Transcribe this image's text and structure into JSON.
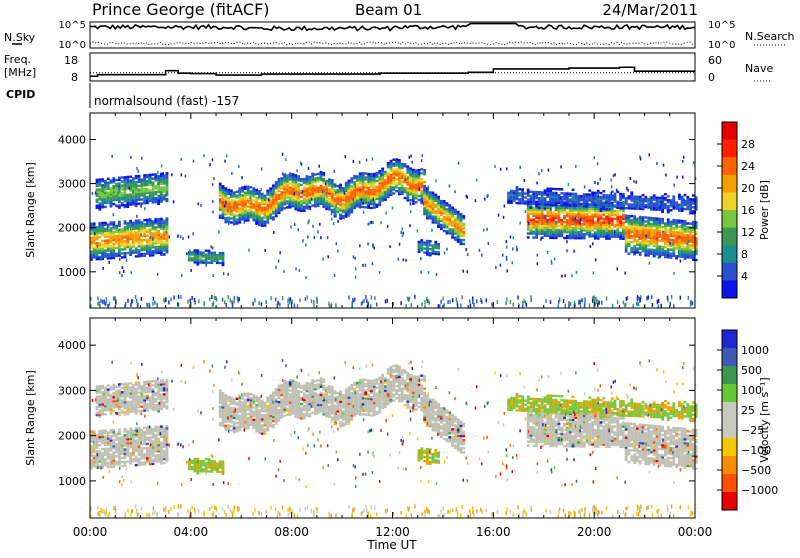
{
  "header": {
    "title": "Prince George (fitACF)",
    "beam": "Beam 01",
    "date": "24/Mar/2011"
  },
  "status_panels": {
    "nsky_label": "N.Sky",
    "nsearch_label": "N.Search",
    "noise_ticks": [
      "10^5",
      "10^0"
    ],
    "freq_label": "Freq.",
    "freq_unit": "[MHz]",
    "freq_ticks": [
      "18",
      "8"
    ],
    "nave_label": "Nave",
    "nave_ticks": [
      "60",
      "0"
    ],
    "cpid_label": "CPID",
    "cpid_value": "normalsound (fast) -157"
  },
  "colors": {
    "power_scale": [
      "#0a14e6",
      "#2850d2",
      "#1e8c8c",
      "#3c9650",
      "#78c83c",
      "#f0d228",
      "#f5a000",
      "#fa6400",
      "#ff1e00",
      "#e60000"
    ],
    "velocity_scale": [
      "#1e28d2",
      "#3c5ab4",
      "#3c9650",
      "#64c832",
      "#c8c8bc",
      "#c8c8bc",
      "#f5c800",
      "#fa8c00",
      "#fa5000",
      "#e60000"
    ],
    "ground_scatter": "#c0c0b4"
  },
  "chart_data": [
    {
      "type": "heatmap",
      "name": "power",
      "ylabel": "Slant Range [km]",
      "yticks": [
        "4000",
        "3000",
        "2000",
        "1000"
      ],
      "ylim": [
        180,
        4600
      ],
      "colorbar_label": "Power [dB]",
      "colorbar_ticks": [
        "28",
        "24",
        "20",
        "16",
        "12",
        "8",
        "4"
      ],
      "colorbar_range": [
        0,
        32
      ]
    },
    {
      "type": "heatmap",
      "name": "velocity",
      "ylabel": "Slant Range [km]",
      "yticks": [
        "4000",
        "3000",
        "2000",
        "1000"
      ],
      "ylim": [
        180,
        4600
      ],
      "colorbar_label": "Velocity [m s⁻¹]",
      "colorbar_ticks": [
        "1000",
        "500",
        "100",
        "25",
        "−25",
        "−100",
        "−500",
        "−1000"
      ]
    }
  ],
  "time_axis": {
    "xlabel": "Time UT",
    "ticks": [
      "00:00",
      "04:00",
      "08:00",
      "12:00",
      "16:00",
      "20:00",
      "00:00"
    ],
    "range_hours": [
      0,
      24
    ]
  }
}
